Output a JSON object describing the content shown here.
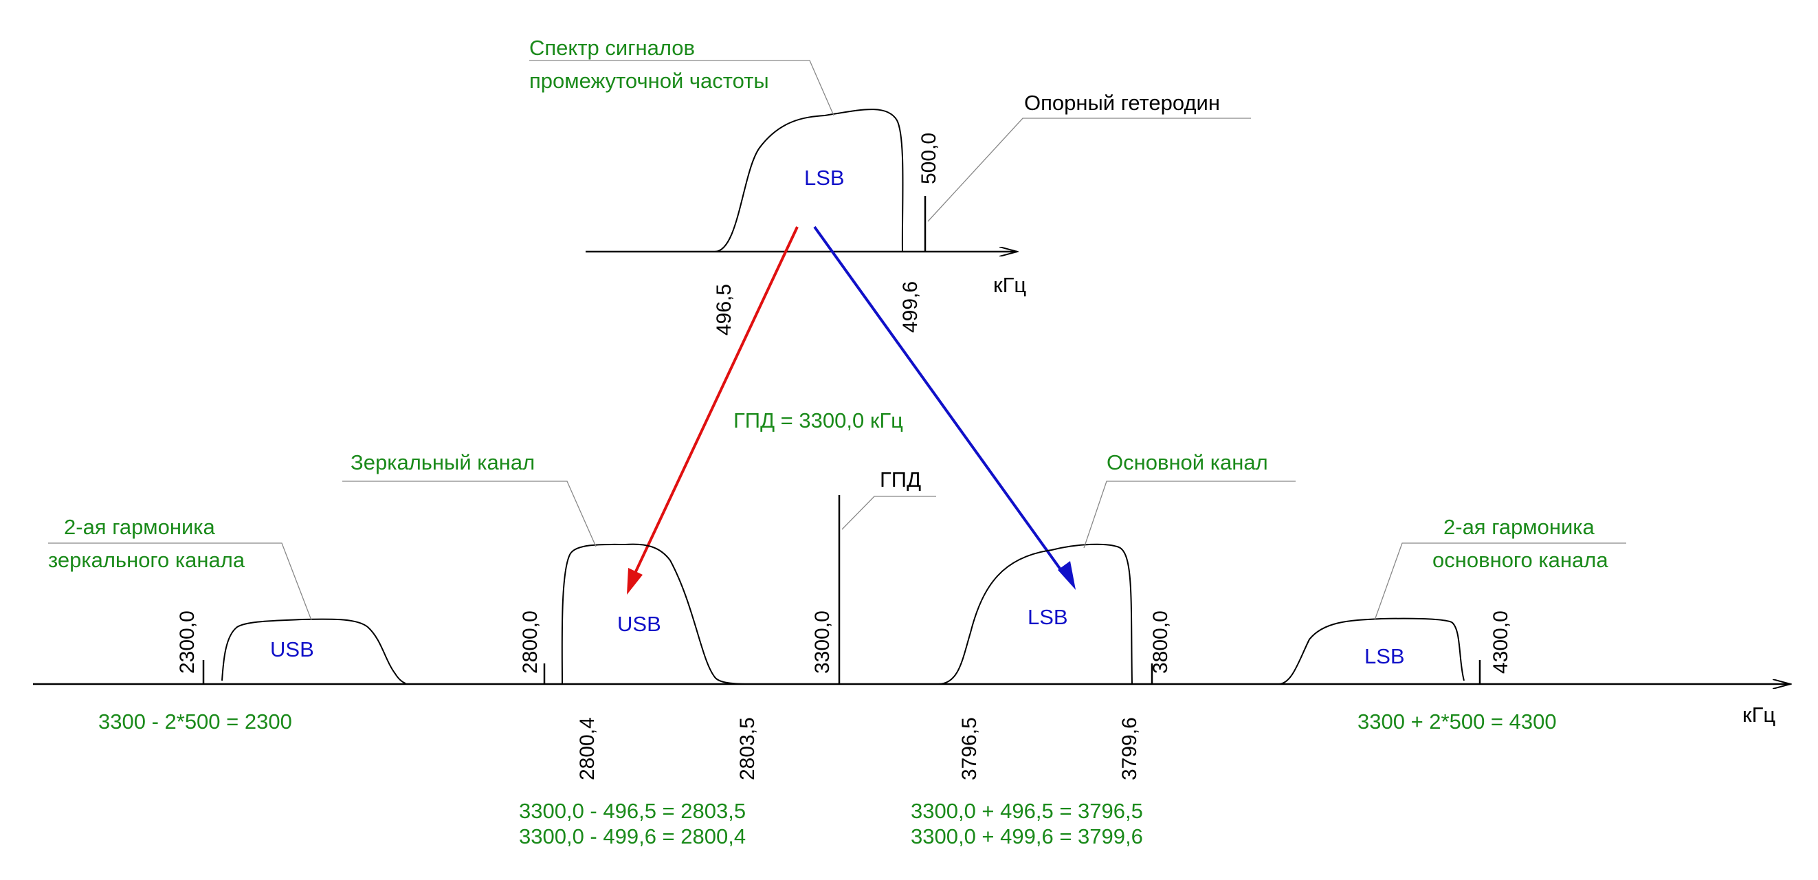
{
  "colors": {
    "annotation": "#1a8a1a",
    "sideband": "#1010c8",
    "red_arrow": "#e01010",
    "blue_arrow": "#1010c8",
    "line": "#000000"
  },
  "top": {
    "title_line1": "Спектр сигналов",
    "title_line2": "промежуточной частоты",
    "sideband": "LSB",
    "oscillator_label": "Опорный гетеродин",
    "tick_500": "500,0",
    "tick_4965": "496,5",
    "tick_4996": "499,6",
    "unit": "кГц"
  },
  "middle": {
    "gpd_formula": "ГПД = 3300,0 кГц",
    "gpd_label": "ГПД"
  },
  "bottom": {
    "mirror_channel": "Зеркальный канал",
    "main_channel": "Основной канал",
    "harm_mirror_line1": "2-ая гармоника",
    "harm_mirror_line2": "зеркального канала",
    "harm_main_line1": "2-ая гармоника",
    "harm_main_line2": "основного канала",
    "usb1": "USB",
    "usb2": "USB",
    "lsb1": "LSB",
    "lsb2": "LSB",
    "tick_2300": "2300,0",
    "tick_2800": "2800,0",
    "tick_3300": "3300,0",
    "tick_3800": "3800,0",
    "tick_4300": "4300,0",
    "tick_28004": "2800,4",
    "tick_28035": "2803,5",
    "tick_37965": "3796,5",
    "tick_37996": "3799,6",
    "unit": "кГц",
    "formula_left": "3300 - 2*500 = 2300",
    "formula_right": "3300 + 2*500 = 4300",
    "formula_mid1_a": "3300,0 - 496,5 = 2803,5",
    "formula_mid1_b": "3300,0 - 499,6 = 2800,4",
    "formula_mid2_a": "3300,0 + 496,5 = 3796,5",
    "formula_mid2_b": "3300,0 + 499,6 = 3799,6"
  }
}
